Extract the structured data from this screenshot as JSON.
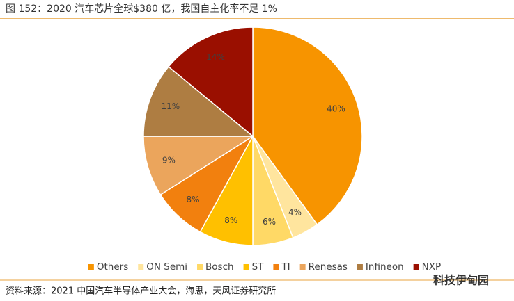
{
  "chart_data": {
    "type": "pie",
    "title": "图 152：2020 汽车芯片全球$380 亿，我国自主化率不足 1%",
    "categories": [
      "Others",
      "ON Semi",
      "Bosch",
      "ST",
      "TI",
      "Renesas",
      "Infineon",
      "NXP"
    ],
    "values": [
      40,
      4,
      6,
      8,
      8,
      9,
      11,
      14
    ],
    "value_labels": [
      "40%",
      "4%",
      "6%",
      "8%",
      "8%",
      "9%",
      "11%",
      "14%"
    ],
    "colors": [
      "#F79400",
      "#FFE59E",
      "#FFD966",
      "#FFC000",
      "#F2800E",
      "#EBA55C",
      "#AE7D42",
      "#9A0F00"
    ],
    "legend": "bottom",
    "source": "资料来源：2021 中国汽车半导体产业大会，海思，天风证券研究所",
    "watermark": "科技伊甸园"
  }
}
